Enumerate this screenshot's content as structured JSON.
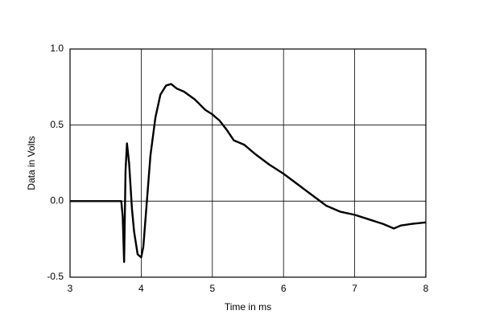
{
  "chart_data": {
    "type": "line",
    "x_label": "Time in ms",
    "y_label": "Data in Volts",
    "x": [
      3,
      3.7,
      3.72,
      3.74,
      3.76,
      3.78,
      3.8,
      3.83,
      3.87,
      3.9,
      3.95,
      4.0,
      4.03,
      4.08,
      4.13,
      4.2,
      4.27,
      4.35,
      4.42,
      4.5,
      4.6,
      4.75,
      4.9,
      5.0,
      5.1,
      5.2,
      5.3,
      5.45,
      5.6,
      5.8,
      6.0,
      6.2,
      6.4,
      6.6,
      6.8,
      7.0,
      7.2,
      7.4,
      7.55,
      7.65,
      7.8,
      8.0
    ],
    "series": [
      {
        "color": "#000000",
        "values": [
          0,
          0,
          0,
          -0.1,
          -0.4,
          0.2,
          0.38,
          0.25,
          -0.05,
          -0.2,
          -0.35,
          -0.37,
          -0.3,
          0.0,
          0.3,
          0.55,
          0.7,
          0.76,
          0.77,
          0.74,
          0.72,
          0.67,
          0.6,
          0.57,
          0.53,
          0.47,
          0.4,
          0.37,
          0.31,
          0.24,
          0.18,
          0.11,
          0.04,
          -0.03,
          -0.07,
          -0.09,
          -0.12,
          -0.15,
          -0.18,
          -0.16,
          -0.15,
          -0.14
        ]
      }
    ],
    "xlim": [
      3,
      8
    ],
    "xticks": [
      3,
      4,
      5,
      6,
      7,
      8
    ],
    "ylim": [
      -0.5,
      1.0
    ],
    "yticks": [
      -0.5,
      {
        "value": 0,
        "label": "0.0"
      },
      0.5,
      {
        "value": 1,
        "label": "1.0"
      }
    ],
    "grid": true
  }
}
